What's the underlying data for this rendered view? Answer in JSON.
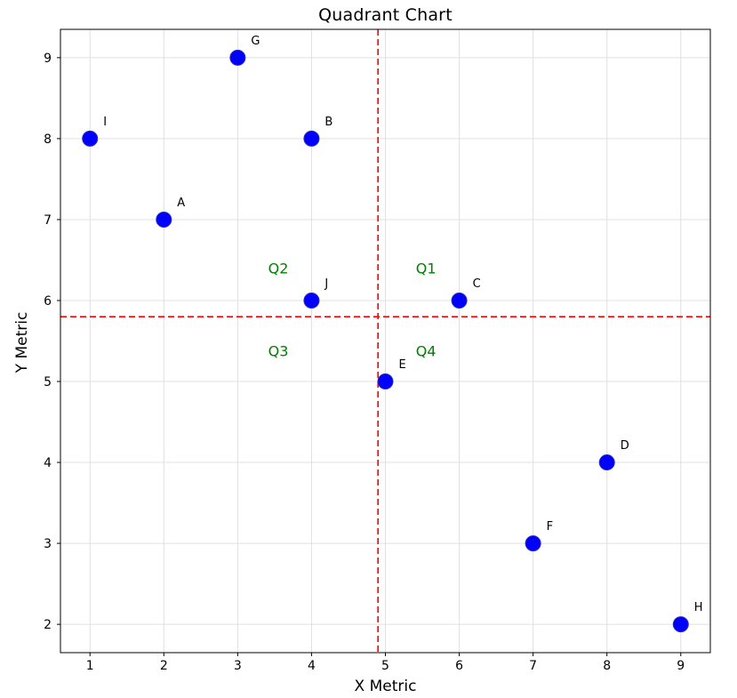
{
  "chart_data": {
    "type": "scatter",
    "title": "Quadrant Chart",
    "xlabel": "X Metric",
    "ylabel": "Y Metric",
    "xlim": [
      0.6,
      9.4
    ],
    "ylim": [
      1.65,
      9.35
    ],
    "xticks": [
      1,
      2,
      3,
      4,
      5,
      6,
      7,
      8,
      9
    ],
    "yticks": [
      2,
      3,
      4,
      5,
      6,
      7,
      8,
      9
    ],
    "grid": true,
    "legend": "none",
    "points": [
      {
        "label": "A",
        "x": 2,
        "y": 7
      },
      {
        "label": "B",
        "x": 4,
        "y": 8
      },
      {
        "label": "C",
        "x": 6,
        "y": 6
      },
      {
        "label": "D",
        "x": 8,
        "y": 4
      },
      {
        "label": "E",
        "x": 5,
        "y": 5
      },
      {
        "label": "F",
        "x": 7,
        "y": 3
      },
      {
        "label": "G",
        "x": 3,
        "y": 9
      },
      {
        "label": "H",
        "x": 9,
        "y": 2
      },
      {
        "label": "I",
        "x": 1,
        "y": 8
      },
      {
        "label": "J",
        "x": 4,
        "y": 6
      }
    ],
    "mean_lines": {
      "x": 4.9,
      "y": 5.8,
      "color": "#ff0000",
      "style": "dashed"
    },
    "quadrant_labels": [
      {
        "text": "Q1",
        "x": 5.55,
        "y": 6.4
      },
      {
        "text": "Q2",
        "x": 3.55,
        "y": 6.4
      },
      {
        "text": "Q3",
        "x": 3.55,
        "y": 5.38
      },
      {
        "text": "Q4",
        "x": 5.55,
        "y": 5.38
      }
    ],
    "colors": {
      "marker_fill": "#0000ff",
      "marker_opacity": 0.8,
      "marker_edge": "#2a2ac0",
      "quadrant_label": "#008000",
      "grid_line": "#e0e0e0",
      "axis_line": "#000000",
      "tick_label": "#000000",
      "annotation": "#000000"
    },
    "marker_radius_px": 8.5
  }
}
